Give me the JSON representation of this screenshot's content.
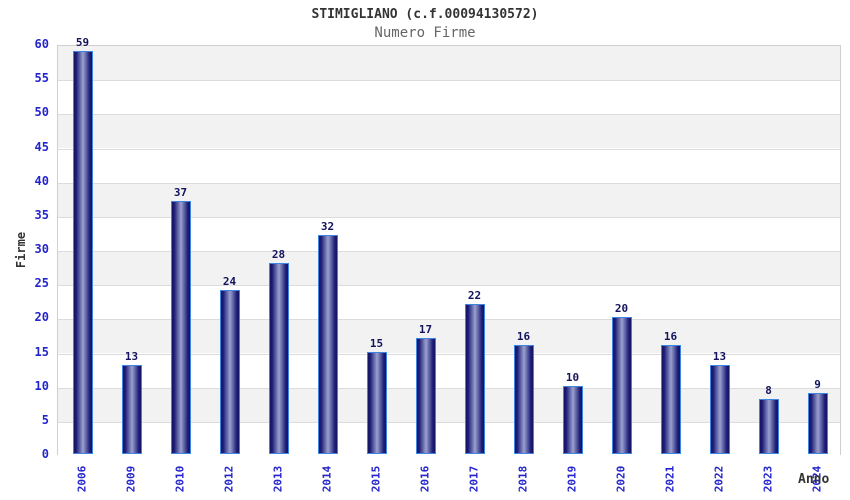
{
  "header": {
    "title": "STIMIGLIANO (c.f.00094130572)",
    "subtitle": "Numero Firme"
  },
  "chart_data": {
    "type": "bar",
    "title": "STIMIGLIANO (c.f.00094130572)",
    "subtitle": "Numero Firme",
    "categories": [
      "2006",
      "2009",
      "2010",
      "2012",
      "2013",
      "2014",
      "2015",
      "2016",
      "2017",
      "2018",
      "2019",
      "2020",
      "2021",
      "2022",
      "2023",
      "2024"
    ],
    "values": [
      59,
      13,
      37,
      24,
      28,
      32,
      15,
      17,
      22,
      16,
      10,
      20,
      16,
      13,
      8,
      9
    ],
    "xlabel": "Anno",
    "ylabel": "Firme",
    "ylim": [
      0,
      60
    ],
    "ytick_step": 5,
    "grid": true,
    "legend": "none",
    "colors": {
      "tick_label": "#2424cd",
      "category_label": "#2424cd",
      "value_label": "#14145e",
      "bar_edge": "#3d85e0",
      "bar_dark": "#14145e",
      "bar_mid": "#1c1c78",
      "bar_light": "#9aa1cd",
      "band_gray": "#f2f2f2",
      "gridline": "#dcdcdc",
      "plot_border": "#cfcfcf",
      "title": "#333333",
      "subtitle": "#666666",
      "axis_label": "#333333"
    }
  }
}
